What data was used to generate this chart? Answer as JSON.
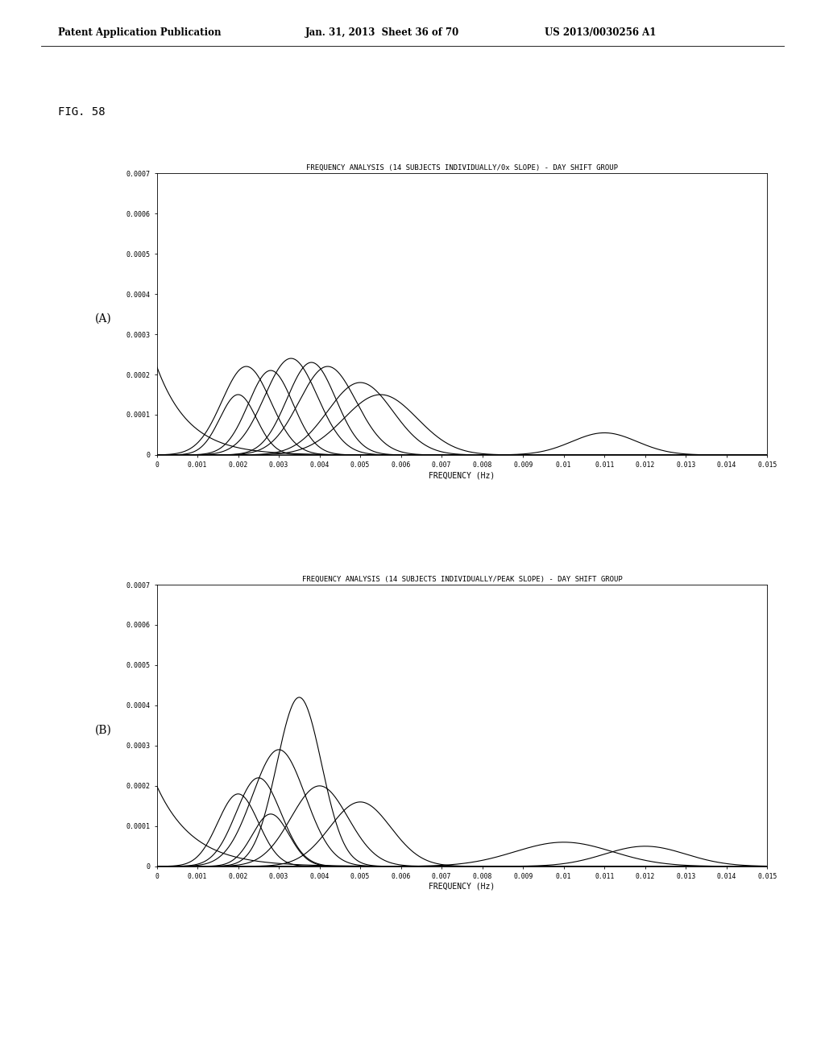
{
  "header_left": "Patent Application Publication",
  "header_mid": "Jan. 31, 2013  Sheet 36 of 70",
  "header_right": "US 2013/0030256 A1",
  "fig_label": "FIG. 58",
  "title_A": "FREQUENCY ANALYSIS (14 SUBJECTS INDIVIDUALLY/0x SLOPE) - DAY SHIFT GROUP",
  "title_B": "FREQUENCY ANALYSIS (14 SUBJECTS INDIVIDUALLY/PEAK SLOPE) - DAY SHIFT GROUP",
  "xlabel": "FREQUENCY (Hz)",
  "label_A": "(A)",
  "label_B": "(B)",
  "xlim": [
    0,
    0.015
  ],
  "ylim": [
    0,
    0.0007
  ],
  "xticks": [
    0,
    0.001,
    0.002,
    0.003,
    0.004,
    0.005,
    0.006,
    0.007,
    0.008,
    0.009,
    0.01,
    0.011,
    0.012,
    0.013,
    0.014,
    0.015
  ],
  "xticklabels": [
    "0",
    "0.001",
    "0.002",
    "0.003",
    "0.004",
    "0.005",
    "0.006",
    "0.007",
    "0.008",
    "0.009",
    "0.01",
    "0.011",
    "0.012",
    "0.013",
    "0.014",
    "0.015"
  ],
  "yticks": [
    0,
    0.0001,
    0.0002,
    0.0003,
    0.0004,
    0.0005,
    0.0006,
    0.0007
  ],
  "background_color": "#ffffff",
  "line_color": "#000000",
  "curves_A": [
    {
      "type": "gaussian",
      "mu": 0.0022,
      "sigma": 0.0006,
      "amp": 0.00022
    },
    {
      "type": "gaussian",
      "mu": 0.0028,
      "sigma": 0.00055,
      "amp": 0.00021
    },
    {
      "type": "gaussian",
      "mu": 0.0033,
      "sigma": 0.00065,
      "amp": 0.00024
    },
    {
      "type": "gaussian",
      "mu": 0.0038,
      "sigma": 0.0006,
      "amp": 0.00023
    },
    {
      "type": "gaussian",
      "mu": 0.0042,
      "sigma": 0.0007,
      "amp": 0.00022
    },
    {
      "type": "gaussian",
      "mu": 0.005,
      "sigma": 0.0008,
      "amp": 0.00018
    },
    {
      "type": "gaussian",
      "mu": 0.0055,
      "sigma": 0.0009,
      "amp": 0.00015
    },
    {
      "type": "exp_decay",
      "amp": 0.00022,
      "decay": 0.0008
    },
    {
      "type": "gaussian",
      "mu": 0.002,
      "sigma": 0.00045,
      "amp": 0.00015
    },
    {
      "type": "gaussian",
      "mu": 0.011,
      "sigma": 0.0008,
      "amp": 5.5e-05
    }
  ],
  "curves_B": [
    {
      "type": "gaussian",
      "mu": 0.0035,
      "sigma": 0.00055,
      "amp": 0.00042
    },
    {
      "type": "gaussian",
      "mu": 0.003,
      "sigma": 0.00065,
      "amp": 0.00029
    },
    {
      "type": "gaussian",
      "mu": 0.0025,
      "sigma": 0.00055,
      "amp": 0.00022
    },
    {
      "type": "gaussian",
      "mu": 0.004,
      "sigma": 0.0007,
      "amp": 0.0002
    },
    {
      "type": "gaussian",
      "mu": 0.002,
      "sigma": 0.0005,
      "amp": 0.00018
    },
    {
      "type": "gaussian",
      "mu": 0.005,
      "sigma": 0.00075,
      "amp": 0.00016
    },
    {
      "type": "exp_decay",
      "amp": 0.0002,
      "decay": 0.0009
    },
    {
      "type": "gaussian",
      "mu": 0.0028,
      "sigma": 0.00045,
      "amp": 0.00013
    },
    {
      "type": "gaussian",
      "mu": 0.01,
      "sigma": 0.0012,
      "amp": 6e-05
    },
    {
      "type": "gaussian",
      "mu": 0.012,
      "sigma": 0.001,
      "amp": 5e-05
    }
  ]
}
